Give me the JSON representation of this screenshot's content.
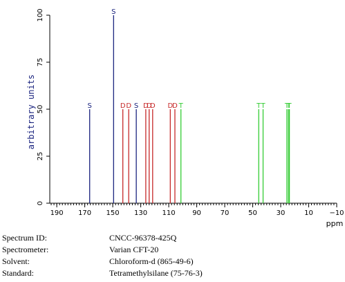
{
  "chart_data": {
    "type": "stick-spectrum",
    "xlabel": "ppm",
    "ylabel": "arbitrary units",
    "xlim": [
      195,
      -10
    ],
    "ylim": [
      0,
      100
    ],
    "x_ticks": [
      190,
      170,
      150,
      130,
      110,
      90,
      70,
      50,
      30,
      10,
      -10
    ],
    "x_minor_step": 2,
    "y_ticks": [
      0,
      25,
      50,
      75,
      100
    ],
    "grid": false,
    "colors": {
      "S": "#1a237e",
      "D": "#c62828",
      "T": "#33cc33",
      "axis": "#000000",
      "ylabel": "#1a237e"
    },
    "peaks": [
      {
        "ppm": 166.5,
        "intensity": 50,
        "label": "S"
      },
      {
        "ppm": 149.4,
        "intensity": 100,
        "label": "S"
      },
      {
        "ppm": 142.8,
        "intensity": 50,
        "label": "D"
      },
      {
        "ppm": 138.6,
        "intensity": 50,
        "label": "D"
      },
      {
        "ppm": 133.2,
        "intensity": 50,
        "label": "S"
      },
      {
        "ppm": 126.4,
        "intensity": 50,
        "label": "D"
      },
      {
        "ppm": 124.0,
        "intensity": 50,
        "label": "D"
      },
      {
        "ppm": 121.5,
        "intensity": 50,
        "label": "D"
      },
      {
        "ppm": 108.9,
        "intensity": 50,
        "label": "D"
      },
      {
        "ppm": 105.6,
        "intensity": 50,
        "label": "D"
      },
      {
        "ppm": 101.3,
        "intensity": 50,
        "label": "T"
      },
      {
        "ppm": 45.7,
        "intensity": 50,
        "label": "T"
      },
      {
        "ppm": 42.6,
        "intensity": 50,
        "label": "T"
      },
      {
        "ppm": 25.6,
        "intensity": 50,
        "label": "T"
      },
      {
        "ppm": 24.5,
        "intensity": 50,
        "label": "T"
      },
      {
        "ppm": 23.8,
        "intensity": 50,
        "label": "T"
      }
    ]
  },
  "info": [
    {
      "label": "Spectrum ID:",
      "value": "CNCC-96378-425Q"
    },
    {
      "label": "Spectrometer:",
      "value": "Varian CFT-20"
    },
    {
      "label": "Solvent:",
      "value": "Chloroform-d (865-49-6)"
    },
    {
      "label": "Standard:",
      "value": "Tetramethylsilane (75-76-3)"
    }
  ]
}
